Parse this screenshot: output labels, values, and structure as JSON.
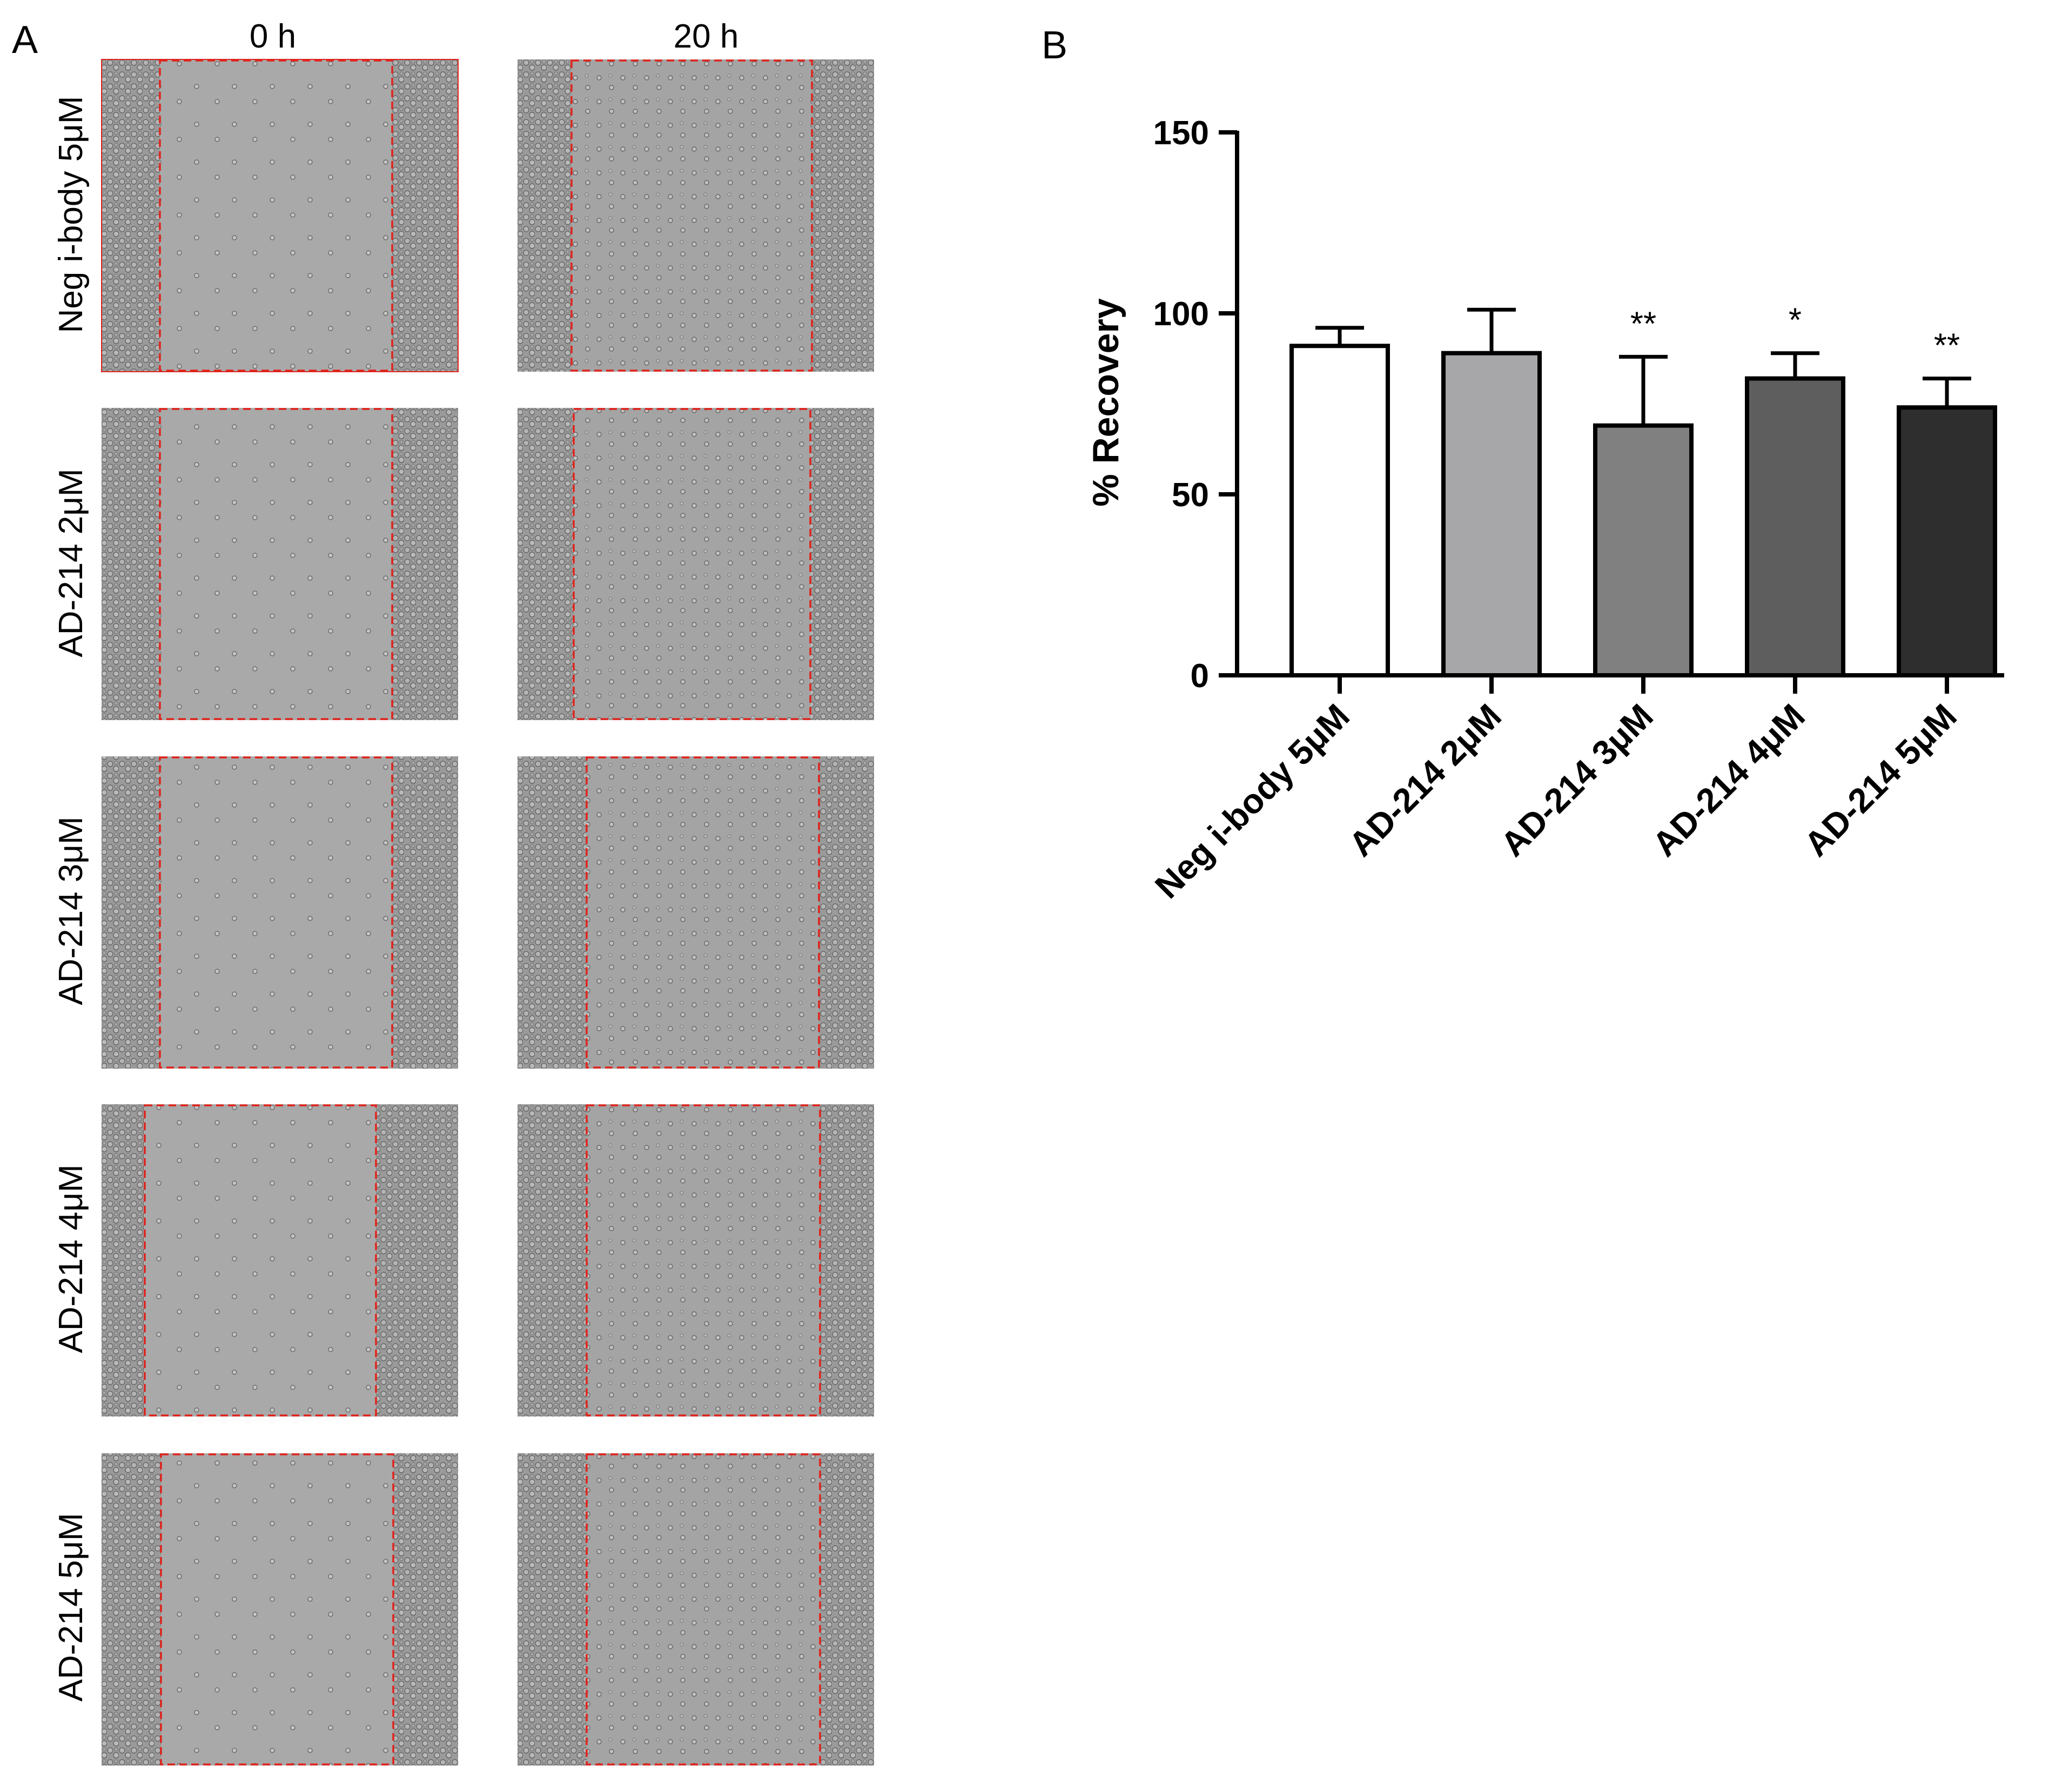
{
  "panel_a": {
    "letter": "A",
    "columns": [
      "0 h",
      "20 h"
    ],
    "rows": [
      "Neg i-body 5μM",
      "AD-214 2μM",
      "AD-214 3μM",
      "AD-214 4μM",
      "AD-214 5μM"
    ],
    "image_description": "phase-contrast micrographs of scratch wound assay with red dashed boundaries",
    "colors": {
      "cell_bg": "#9a9a9a",
      "wound_bg": "#a9a9a9",
      "boundary": "#e0231c"
    }
  },
  "panel_b": {
    "letter": "B"
  },
  "chart_data": {
    "type": "bar",
    "ylabel": "% Recovery",
    "ylim": [
      0,
      150
    ],
    "yticks": [
      0,
      50,
      100,
      150
    ],
    "categories": [
      "Neg i-body 5μM",
      "AD-214 2μM",
      "AD-214 3μM",
      "AD-214 4μM",
      "AD-214 5μM"
    ],
    "values": [
      91,
      89,
      69,
      82,
      74
    ],
    "errors": [
      5,
      12,
      19,
      7,
      8
    ],
    "significance": [
      "",
      "",
      "**",
      "*",
      "**"
    ],
    "bar_colors": [
      "#ffffff",
      "#a7a7a9",
      "#808080",
      "#5e5e5e",
      "#2e2e2e"
    ],
    "grid": false
  }
}
